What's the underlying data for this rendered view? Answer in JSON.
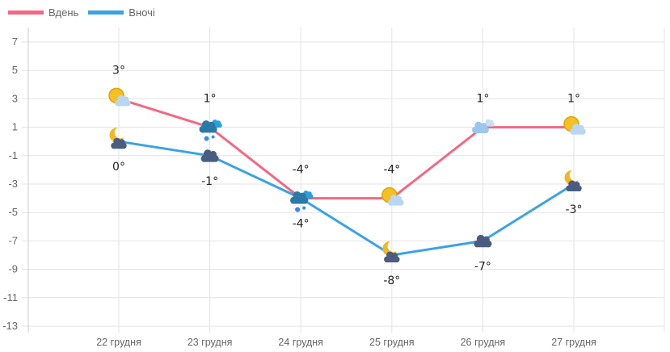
{
  "chart_data": {
    "type": "line",
    "categories": [
      "22 грудня",
      "23 грудня",
      "24 грудня",
      "25 грудня",
      "26 грудня",
      "27 грудня"
    ],
    "series": [
      {
        "name": "Вдень",
        "color": "#f26883",
        "values": [
          3,
          1,
          -4,
          -4,
          1,
          1
        ],
        "labels": [
          "3°",
          "1°",
          "-4°",
          "-4°",
          "1°",
          "1°"
        ],
        "icons": [
          "sun-cloud",
          "snow-cloud",
          "snow-cloud",
          "sun-cloud",
          "cloud-light",
          "sun-cloud"
        ]
      },
      {
        "name": "Вночі",
        "color": "#3ba3e3",
        "values": [
          0,
          -1,
          -4,
          -8,
          -7,
          -3
        ],
        "labels": [
          "0°",
          "-1°",
          "-4°",
          "-8°",
          "-7°",
          "-3°"
        ],
        "icons": [
          "moon-cloud",
          "dark-cloud",
          "snow-cloud",
          "moon-cloud",
          "dark-cloud",
          "moon-cloud"
        ]
      }
    ],
    "yticks": [
      7,
      5,
      3,
      1,
      -1,
      -3,
      -5,
      -7,
      -9,
      -11,
      -13
    ],
    "ylim": [
      -13,
      7
    ],
    "grid": true,
    "legend": "top-left"
  }
}
